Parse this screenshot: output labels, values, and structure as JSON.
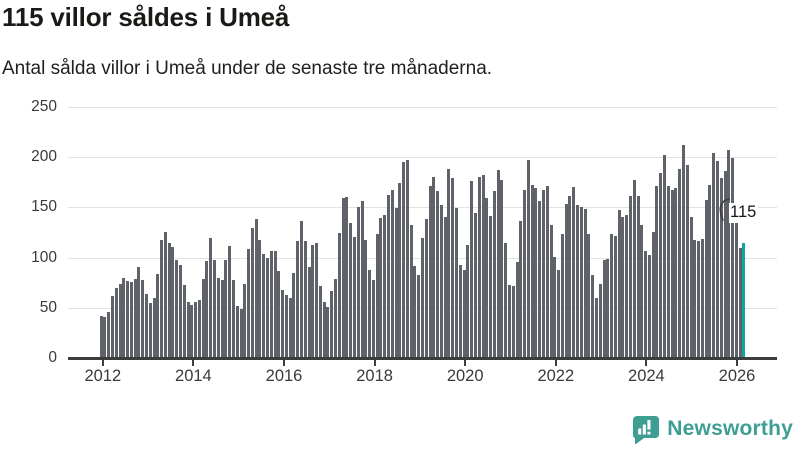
{
  "header": {
    "title": "115 villor såldes i Umeå",
    "subtitle": "Antal sålda villor i Umeå under de senaste tre månaderna."
  },
  "chart_data": {
    "type": "bar",
    "title": "115 villor såldes i Umeå",
    "subtitle": "Antal sålda villor i Umeå under de senaste tre månaderna.",
    "unit": "sålda villor (rullande 3 månader)",
    "period_start": "2012-01",
    "period_end": "2026-03",
    "x_tick_labels": [
      "2012",
      "2014",
      "2016",
      "2018",
      "2020",
      "2022",
      "2024",
      "2026"
    ],
    "y_tick_labels": [
      "0",
      "50",
      "100",
      "150",
      "200",
      "250"
    ],
    "ylim": [
      0,
      250
    ],
    "grid": "horizontal",
    "legend": "none",
    "values": [
      42,
      41,
      46,
      62,
      70,
      74,
      80,
      77,
      76,
      79,
      91,
      78,
      64,
      55,
      60,
      84,
      118,
      126,
      115,
      111,
      98,
      93,
      73,
      56,
      53,
      56,
      58,
      79,
      97,
      120,
      98,
      80,
      78,
      98,
      112,
      78,
      52,
      49,
      74,
      109,
      129,
      138,
      118,
      104,
      100,
      107,
      107,
      87,
      68,
      63,
      60,
      85,
      117,
      136,
      117,
      91,
      113,
      115,
      72,
      56,
      51,
      67,
      79,
      125,
      159,
      160,
      134,
      121,
      150,
      156,
      118,
      88,
      78,
      124,
      139,
      142,
      162,
      167,
      149,
      174,
      195,
      197,
      132,
      92,
      83,
      120,
      138,
      171,
      180,
      166,
      152,
      140,
      188,
      179,
      149,
      93,
      88,
      113,
      176,
      144,
      180,
      182,
      159,
      141,
      166,
      187,
      177,
      115,
      73,
      72,
      96,
      136,
      167,
      197,
      172,
      169,
      156,
      167,
      171,
      132,
      101,
      88,
      124,
      153,
      161,
      170,
      152,
      150,
      148,
      124,
      83,
      60,
      74,
      98,
      99,
      124,
      122,
      147,
      140,
      142,
      161,
      177,
      161,
      132,
      107,
      103,
      126,
      171,
      184,
      202,
      171,
      167,
      169,
      188,
      212,
      192,
      140,
      118,
      117,
      119,
      157,
      172,
      204,
      196,
      179,
      186,
      207,
      199,
      150,
      110,
      115
    ],
    "highlight_last_bar": true,
    "annotation": {
      "text": "115",
      "target": "last-bar"
    },
    "colors": {
      "bar": "#5f6269",
      "highlight": "#0fa3a6",
      "axis": "#3d3d3d",
      "grid": "#e2e2e2"
    }
  },
  "footer": {
    "brand": "Newsworthy",
    "logo_color": "#3f9e94"
  }
}
